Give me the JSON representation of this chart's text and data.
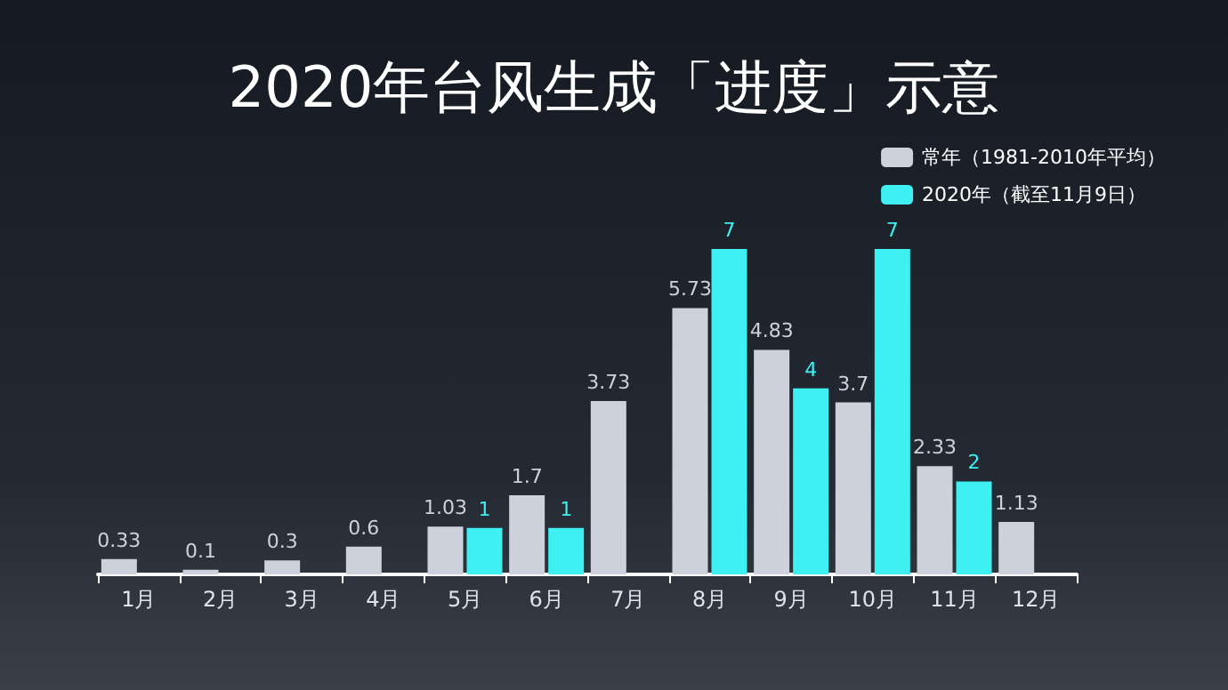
{
  "chart_data": {
    "type": "bar",
    "title": "2020年台风生成「进度」示意",
    "categories": [
      "1月",
      "2月",
      "3月",
      "4月",
      "5月",
      "6月",
      "7月",
      "8月",
      "9月",
      "10月",
      "11月",
      "12月"
    ],
    "series": [
      {
        "name": "常年（1981-2010年平均）",
        "color": "#ccd1dc",
        "values": [
          0.33,
          0.1,
          0.3,
          0.6,
          1.03,
          1.7,
          3.73,
          5.73,
          4.83,
          3.7,
          2.33,
          1.13
        ]
      },
      {
        "name": "2020年（截至11月9日）",
        "color": "#3ef0f2",
        "values": [
          null,
          null,
          null,
          null,
          1,
          1,
          null,
          7,
          4,
          7,
          2,
          null
        ]
      }
    ],
    "data_labels": true,
    "legend": "top right"
  }
}
